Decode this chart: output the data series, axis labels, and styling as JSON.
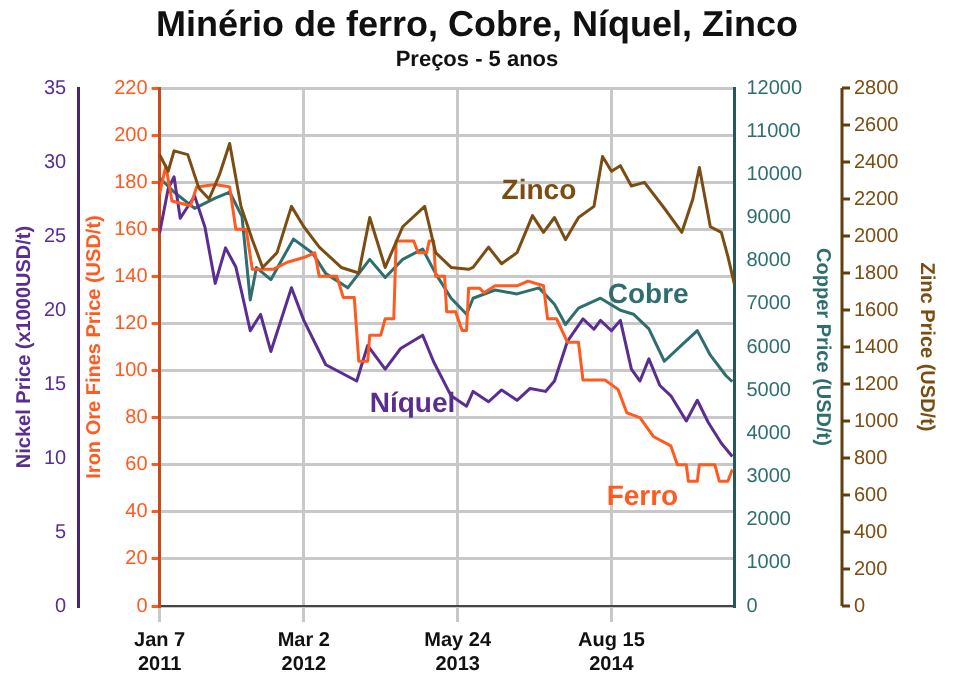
{
  "chart_data": [
    {
      "type": "line",
      "title": "Minério de ferro, Cobre, Níquel, Zinco",
      "subtitle": "Preços - 5 anos",
      "ylabel": "Iron Ore Fines Price (USD/t)",
      "y2label": "Copper Price (USD/t)",
      "y3label": "Nickel Price (x1000USD/t)",
      "xlim": [
        "2011-01-07",
        "2015-08-08"
      ],
      "xticks": [
        {
          "value": "2011-01-07",
          "label": "Jan 7\n2011"
        },
        {
          "value": "2012-03-02",
          "label": "Mar 2\n2012"
        },
        {
          "value": "2013-05-24",
          "label": "May 24\n2013"
        },
        {
          "value": "2014-08-15",
          "label": "Aug 15\n2014"
        }
      ],
      "ylim": [
        0,
        220
      ],
      "yticks": [
        0,
        20,
        40,
        60,
        80,
        100,
        120,
        140,
        160,
        180,
        200,
        220
      ],
      "y2lim": [
        0,
        12000
      ],
      "y2ticks": [
        0,
        1000,
        2000,
        3000,
        4000,
        5000,
        6000,
        7000,
        8000,
        9000,
        10000,
        11000,
        12000
      ],
      "y3lim": [
        0,
        35
      ],
      "y3ticks": [
        0,
        5,
        10,
        15,
        20,
        25,
        30,
        35
      ],
      "grid": true,
      "legend": false,
      "marker": "none",
      "line_style": "solid",
      "series": [
        {
          "name": "Ferro",
          "color": "#ff5a1f",
          "axis": "y",
          "x": [
            "2011-01-07",
            "2011-01-25",
            "2011-02-12",
            "2011-04-07",
            "2011-04-25",
            "2011-06-18",
            "2011-07-30",
            "2011-08-17",
            "2011-09-16",
            "2011-10-04",
            "2011-12-03",
            "2012-01-14",
            "2012-03-02",
            "2012-04-03",
            "2012-04-16",
            "2012-06-06",
            "2012-06-25",
            "2012-07-27",
            "2012-08-09",
            "2012-09-04",
            "2012-09-10",
            "2012-10-12",
            "2012-10-25",
            "2012-11-19",
            "2012-11-26",
            "2013-01-16",
            "2013-01-29",
            "2013-02-23",
            "2013-03-02",
            "2013-03-15",
            "2013-03-21",
            "2013-04-16",
            "2013-04-22",
            "2013-05-18",
            "2013-06-06",
            "2013-06-19",
            "2013-06-25",
            "2013-07-27",
            "2013-08-09",
            "2013-09-10",
            "2013-11-13",
            "2013-12-15",
            "2014-01-29",
            "2014-02-10",
            "2014-03-08",
            "2014-04-09",
            "2014-05-11",
            "2014-05-24",
            "2014-07-27",
            "2014-09-03",
            "2014-09-29",
            "2014-11-06",
            "2014-12-15",
            "2015-02-04",
            "2015-02-23",
            "2015-03-21",
            "2015-03-27",
            "2015-04-22",
            "2015-04-28",
            "2015-06-12",
            "2015-06-25",
            "2015-07-20",
            "2015-08-02"
          ],
          "values": [
            175,
            187,
            172,
            170,
            178,
            179,
            178,
            160,
            160,
            143,
            143,
            146,
            148,
            150,
            140,
            140,
            131,
            131,
            104,
            104,
            115,
            115,
            122,
            122,
            155,
            155,
            150,
            150,
            155,
            155,
            140,
            140,
            125,
            125,
            117,
            117,
            135,
            135,
            133,
            136,
            136,
            138,
            136,
            122,
            122,
            112,
            112,
            96,
            96,
            92,
            82,
            80,
            72,
            68,
            60,
            60,
            53,
            53,
            60,
            60,
            53,
            53,
            58
          ]
        },
        {
          "name": "Níquel",
          "color": "#5a2d91",
          "axis": "y3",
          "x": [
            "2011-01-07",
            "2011-02-01",
            "2011-02-18",
            "2011-03-08",
            "2011-04-19",
            "2011-05-19",
            "2011-06-18",
            "2011-07-18",
            "2011-08-17",
            "2011-09-04",
            "2011-09-28",
            "2011-10-28",
            "2011-11-27",
            "2012-01-26",
            "2012-03-02",
            "2012-05-05",
            "2012-08-03",
            "2012-09-04",
            "2012-10-25",
            "2012-12-09",
            "2013-02-11",
            "2013-03-15",
            "2013-05-05",
            "2013-06-19",
            "2013-07-08",
            "2013-08-22",
            "2013-09-29",
            "2013-11-13",
            "2013-12-21",
            "2014-02-04",
            "2014-03-02",
            "2014-04-09",
            "2014-05-24",
            "2014-06-25",
            "2014-07-14",
            "2014-08-15",
            "2014-09-10",
            "2014-10-12",
            "2014-11-06",
            "2014-12-02",
            "2015-01-03",
            "2015-02-04",
            "2015-03-21",
            "2015-04-22",
            "2015-05-24",
            "2015-07-01",
            "2015-08-02"
          ],
          "values": [
            25.2,
            28.2,
            29.0,
            26.2,
            27.7,
            25.6,
            21.8,
            24.2,
            22.9,
            21.1,
            18.6,
            19.7,
            17.2,
            21.5,
            19.3,
            16.3,
            15.2,
            17.6,
            16.0,
            17.4,
            18.3,
            16.5,
            14.2,
            13.5,
            14.5,
            13.8,
            14.6,
            13.9,
            14.7,
            14.5,
            15.2,
            17.9,
            19.4,
            18.7,
            19.3,
            18.6,
            19.3,
            16.0,
            15.2,
            16.7,
            14.9,
            14.2,
            12.5,
            13.9,
            12.4,
            11.0,
            10.1
          ]
        },
        {
          "name": "Cobre",
          "color": "#2f6e6e",
          "axis": "y2",
          "x": [
            "2011-01-07",
            "2011-02-18",
            "2011-04-19",
            "2011-06-18",
            "2011-07-30",
            "2011-09-04",
            "2011-09-28",
            "2011-10-16",
            "2011-11-27",
            "2012-01-02",
            "2012-02-01",
            "2012-03-28",
            "2012-05-05",
            "2012-07-08",
            "2012-09-10",
            "2012-10-25",
            "2012-12-15",
            "2013-02-11",
            "2013-03-21",
            "2013-05-05",
            "2013-06-19",
            "2013-07-08",
            "2013-09-10",
            "2013-11-13",
            "2014-01-16",
            "2014-03-02",
            "2014-04-03",
            "2014-05-11",
            "2014-07-14",
            "2014-09-10",
            "2014-10-18",
            "2014-12-02",
            "2015-01-16",
            "2015-03-08",
            "2015-04-22",
            "2015-05-30",
            "2015-07-14",
            "2015-08-02"
          ],
          "values": [
            9920,
            9590,
            9210,
            9450,
            9590,
            9020,
            7090,
            7840,
            7560,
            8080,
            8500,
            8170,
            7700,
            7370,
            8030,
            7610,
            8030,
            8270,
            7700,
            7130,
            6760,
            7130,
            7320,
            7230,
            7370,
            6990,
            6520,
            6900,
            7130,
            6850,
            6760,
            6420,
            5670,
            6050,
            6380,
            5810,
            5340,
            5200
          ]
        }
      ]
    },
    {
      "type": "line",
      "ylabel": "Zinc Price (USD/t)",
      "tick_labels": "y",
      "xlim": [
        "2011-01-07",
        "2015-08-08"
      ],
      "ylim": [
        0,
        2800
      ],
      "yticks": [
        0,
        200,
        400,
        600,
        800,
        1000,
        1200,
        1400,
        1600,
        1800,
        2000,
        2200,
        2400,
        2600,
        2800
      ],
      "legend": false,
      "marker": "none",
      "line_style": "solid",
      "series": [
        {
          "name": "Zinco",
          "color": "#7b4d12",
          "x": [
            "2011-01-07",
            "2011-02-01",
            "2011-02-18",
            "2011-03-30",
            "2011-05-01",
            "2011-05-31",
            "2011-06-30",
            "2011-07-30",
            "2011-09-01",
            "2011-10-04",
            "2011-11-03",
            "2011-12-15",
            "2012-01-26",
            "2012-03-02",
            "2012-04-16",
            "2012-06-19",
            "2012-08-09",
            "2012-09-10",
            "2012-10-25",
            "2012-12-15",
            "2013-02-17",
            "2013-03-21",
            "2013-05-05",
            "2013-06-25",
            "2013-07-08",
            "2013-08-22",
            "2013-09-29",
            "2013-11-13",
            "2013-12-28",
            "2014-01-29",
            "2014-03-02",
            "2014-04-03",
            "2014-05-11",
            "2014-06-25",
            "2014-07-20",
            "2014-08-15",
            "2014-09-10",
            "2014-10-12",
            "2014-11-19",
            "2015-01-16",
            "2015-03-08",
            "2015-04-09",
            "2015-04-28",
            "2015-05-30",
            "2015-07-01",
            "2015-07-20",
            "2015-08-08"
          ],
          "values": [
            2440,
            2350,
            2460,
            2440,
            2260,
            2200,
            2330,
            2500,
            2160,
            1980,
            1830,
            1910,
            2160,
            2050,
            1940,
            1830,
            1800,
            2100,
            1830,
            2050,
            2160,
            1910,
            1830,
            1820,
            1830,
            1940,
            1850,
            1910,
            2110,
            2020,
            2100,
            1980,
            2100,
            2160,
            2430,
            2350,
            2380,
            2270,
            2290,
            2150,
            2020,
            2200,
            2370,
            2050,
            2020,
            1890,
            1740
          ]
        }
      ]
    }
  ]
}
